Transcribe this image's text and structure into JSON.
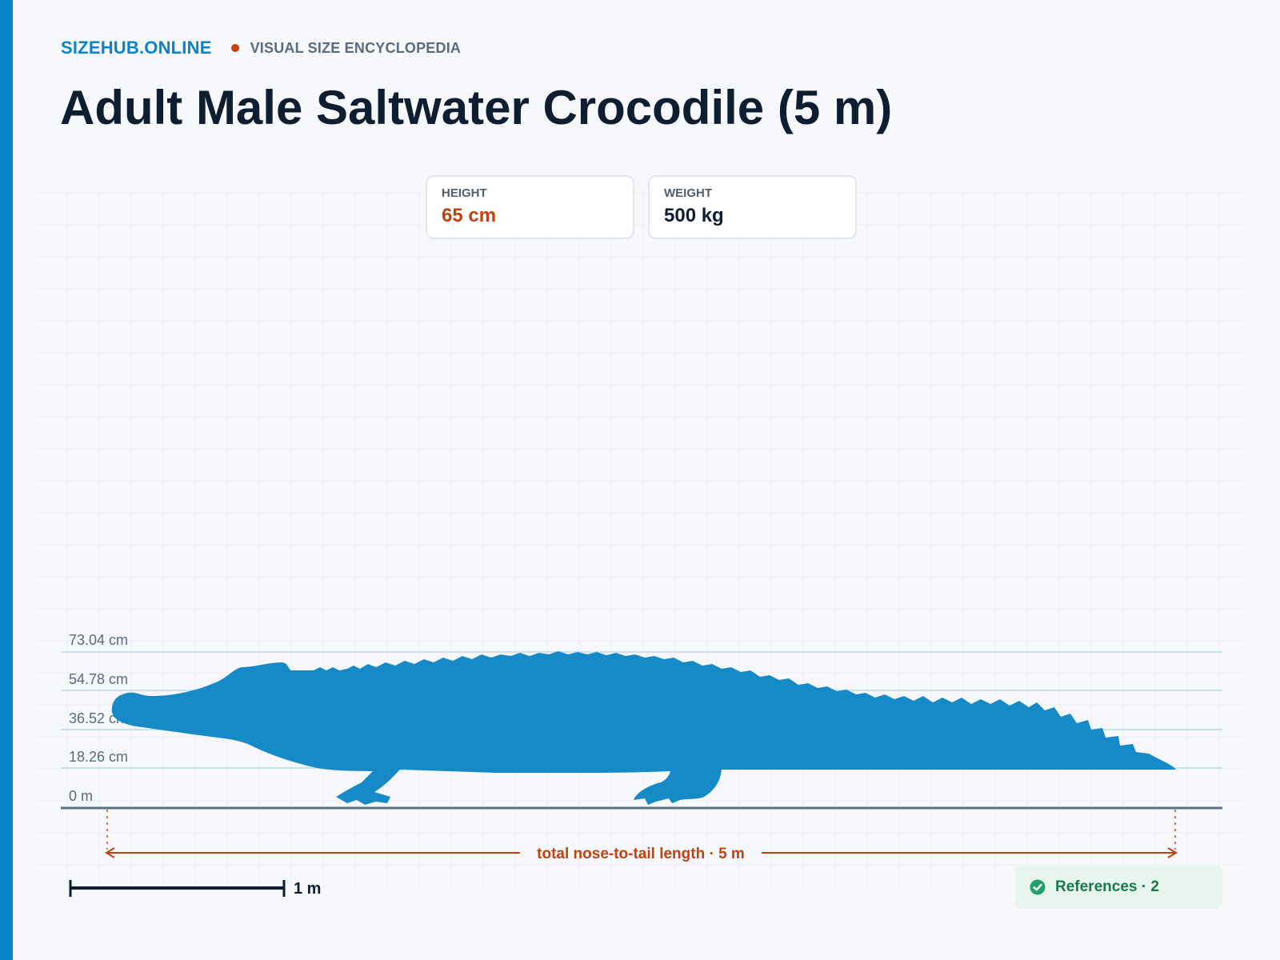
{
  "header": {
    "brand": "SIZEHUB.ONLINE",
    "subtitle": "VISUAL SIZE ENCYCLOPEDIA",
    "title": "Adult Male Saltwater Crocodile (5 m)"
  },
  "stats": {
    "height_label": "HEIGHT",
    "height_value": "65 cm",
    "weight_label": "WEIGHT",
    "weight_value": "500 kg"
  },
  "height_ticks": [
    "73.04 cm",
    "54.78 cm",
    "36.52 cm",
    "18.26 cm",
    "0 m"
  ],
  "dimension": {
    "label": "total nose-to-tail length · 5 m"
  },
  "scale_bar": {
    "label": "1 m"
  },
  "references": {
    "label": "References · 2"
  },
  "colors": {
    "accent": "#0784c9",
    "silhouette": "#1689c7",
    "dimension": "#c2410c",
    "references": "#177a4f"
  },
  "icons": {
    "references": "check-circle-icon"
  }
}
